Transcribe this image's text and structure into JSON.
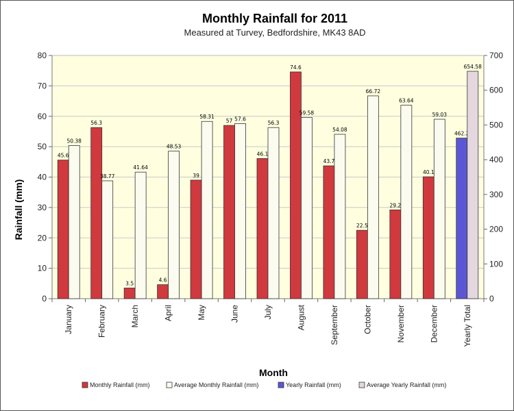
{
  "chart_data": {
    "type": "bar",
    "title": "Monthly Rainfall for 2011",
    "subtitle": "Measured at Turvey, Bedfordshire, MK43 8AD",
    "xlabel": "Month",
    "ylabel": "Rainfall (mm)",
    "ylim": [
      0,
      80
    ],
    "y_ticks": [
      "0",
      "10",
      "20",
      "30",
      "40",
      "50",
      "60",
      "70",
      "80"
    ],
    "y2lim": [
      0,
      700
    ],
    "y2_ticks": [
      "0",
      "100",
      "200",
      "300",
      "400",
      "500",
      "600",
      "700"
    ],
    "grid": true,
    "legend_position": "bottom",
    "categories": [
      "January",
      "February",
      "March",
      "April",
      "May",
      "June",
      "July",
      "August",
      "September",
      "October",
      "November",
      "December",
      "Yearly Total"
    ],
    "series": [
      {
        "name": "Monthly Rainfall (mm)",
        "axis": "left",
        "color": "#d0393e",
        "values": [
          45.6,
          56.3,
          3.5,
          4.6,
          39,
          57,
          46.1,
          74.6,
          43.7,
          22.5,
          29.2,
          40.1,
          null
        ],
        "labels": [
          "45.6",
          "56.3",
          "3.5",
          "4.6",
          "39",
          "57",
          "46.1",
          "74.6",
          "43.7",
          "22.5",
          "29.2",
          "40.1",
          ""
        ]
      },
      {
        "name": "Average Monthly Rainfall (mm)",
        "axis": "left",
        "color": "#fbfbef",
        "values": [
          50.38,
          38.77,
          41.64,
          48.53,
          58.31,
          57.6,
          56.3,
          59.58,
          54.08,
          66.72,
          63.64,
          59.03,
          null
        ],
        "labels": [
          "50.38",
          "38.77",
          "41.64",
          "48.53",
          "58.31",
          "57.6",
          "56.3",
          "59.58",
          "54.08",
          "66.72",
          "63.64",
          "59.03",
          ""
        ]
      },
      {
        "name": "Yearly Rainfall (mm)",
        "axis": "right",
        "color": "#5b57d4",
        "values": [
          null,
          null,
          null,
          null,
          null,
          null,
          null,
          null,
          null,
          null,
          null,
          null,
          462.2
        ],
        "labels": [
          "",
          "",
          "",
          "",
          "",
          "",
          "",
          "",
          "",
          "",
          "",
          "",
          "462.2"
        ]
      },
      {
        "name": "Average Yearly Rainfall (mm)",
        "axis": "right",
        "color": "#e4d8de",
        "values": [
          null,
          null,
          null,
          null,
          null,
          null,
          null,
          null,
          null,
          null,
          null,
          null,
          654.58
        ],
        "labels": [
          "",
          "",
          "",
          "",
          "",
          "",
          "",
          "",
          "",
          "",
          "",
          "",
          "654.58"
        ]
      }
    ]
  }
}
